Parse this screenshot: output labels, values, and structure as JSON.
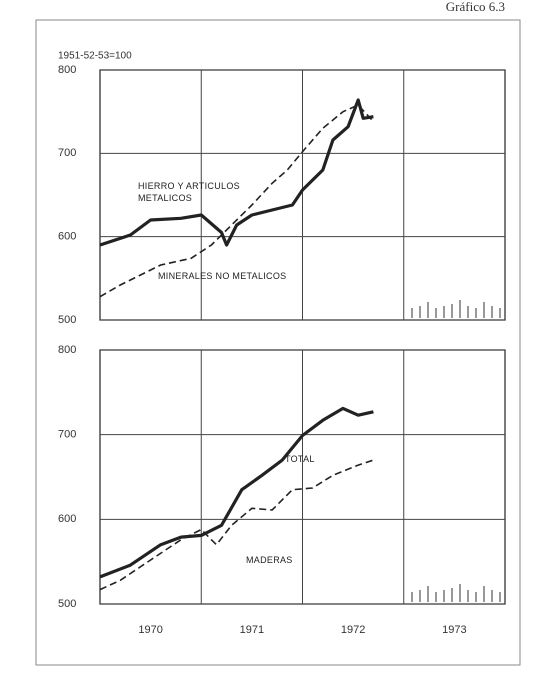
{
  "header": "Gráfico 6.3",
  "chart_data": [
    {
      "type": "line",
      "ylabel": "1951-52-53=100",
      "xlim": [
        1970,
        1974
      ],
      "xgrid": [
        1971,
        1972,
        1973
      ],
      "ylim": [
        500,
        800
      ],
      "yticks": [
        500,
        600,
        700,
        800
      ],
      "grid": true,
      "series": [
        {
          "name": "HIERRO Y ARTICULOS METALICOS",
          "color": "#222222",
          "style": "solid",
          "x": [
            1970.0,
            1970.3,
            1970.5,
            1970.8,
            1971.0,
            1971.2,
            1971.25,
            1971.35,
            1971.5,
            1971.7,
            1971.9,
            1972.0,
            1972.2,
            1972.3,
            1972.45,
            1972.55,
            1972.6,
            1972.7
          ],
          "values": [
            590,
            602,
            620,
            622,
            626,
            605,
            590,
            614,
            626,
            632,
            638,
            656,
            680,
            716,
            732,
            764,
            742,
            744
          ]
        },
        {
          "name": "MINERALES NO METALICOS",
          "color": "#222222",
          "style": "dashed",
          "x": [
            1970.0,
            1970.2,
            1970.4,
            1970.6,
            1970.9,
            1971.1,
            1971.3,
            1971.5,
            1971.7,
            1971.85,
            1972.0,
            1972.2,
            1972.4,
            1972.55,
            1972.7
          ],
          "values": [
            528,
            542,
            554,
            566,
            574,
            590,
            614,
            638,
            664,
            680,
            702,
            730,
            750,
            758,
            738
          ]
        }
      ]
    },
    {
      "type": "line",
      "xlim": [
        1970,
        1974
      ],
      "xgrid": [
        1971,
        1972,
        1973
      ],
      "xticks": [
        {
          "value": 1970.5,
          "label": "1970"
        },
        {
          "value": 1971.5,
          "label": "1971"
        },
        {
          "value": 1972.5,
          "label": "1972"
        },
        {
          "value": 1973.5,
          "label": "1973"
        }
      ],
      "ylim": [
        500,
        800
      ],
      "yticks": [
        500,
        600,
        700,
        800
      ],
      "grid": true,
      "series": [
        {
          "name": "TOTAL",
          "color": "#222222",
          "style": "solid",
          "x": [
            1970.0,
            1970.3,
            1970.6,
            1970.8,
            1971.0,
            1971.2,
            1971.4,
            1971.6,
            1971.8,
            1972.0,
            1972.2,
            1972.4,
            1972.55,
            1972.7
          ],
          "values": [
            532,
            546,
            570,
            579,
            581,
            593,
            635,
            652,
            670,
            699,
            717,
            731,
            723,
            727
          ]
        },
        {
          "name": "MADERAS",
          "color": "#222222",
          "style": "dashed",
          "x": [
            1970.0,
            1970.2,
            1970.5,
            1970.8,
            1971.0,
            1971.15,
            1971.3,
            1971.5,
            1971.7,
            1971.9,
            1972.1,
            1972.3,
            1972.55,
            1972.7
          ],
          "values": [
            517,
            528,
            552,
            576,
            588,
            570,
            593,
            613,
            611,
            635,
            637,
            652,
            664,
            670
          ]
        }
      ]
    }
  ]
}
